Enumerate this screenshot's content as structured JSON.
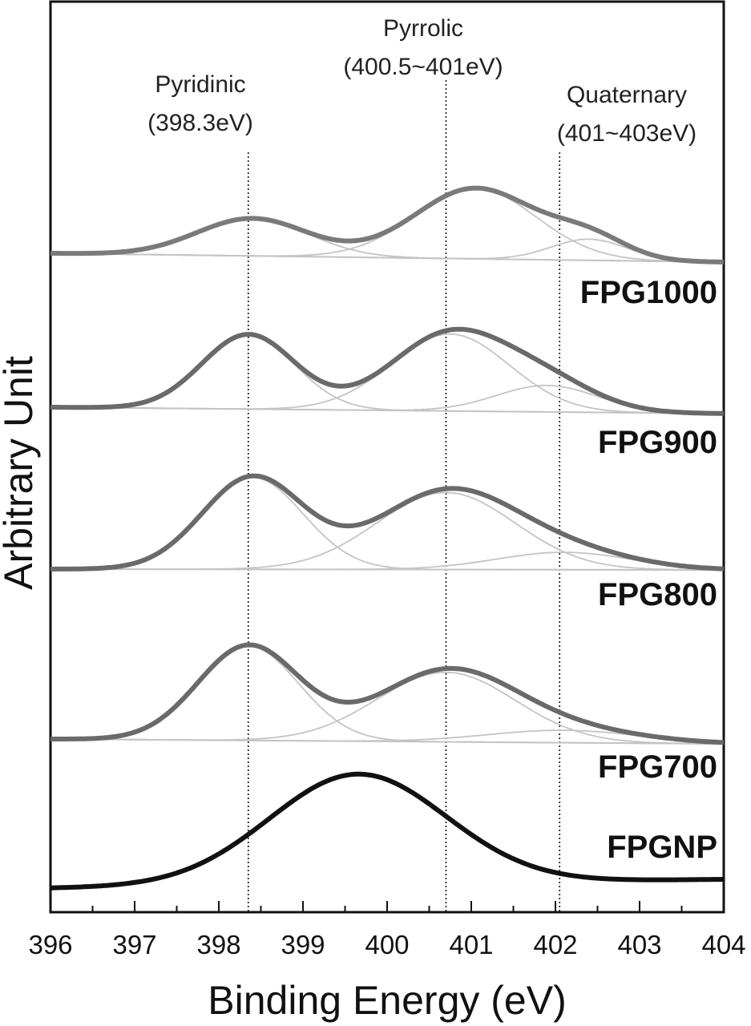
{
  "chart_data": {
    "type": "line",
    "xlabel": "Binding Energy (eV)",
    "ylabel": "Arbitrary Unit",
    "xlim": [
      396,
      404
    ],
    "x_ticks": [
      "396",
      "397",
      "398",
      "399",
      "400",
      "401",
      "402",
      "403",
      "404"
    ],
    "grid": false,
    "annotations": [
      {
        "id": "pyridinic",
        "label": [
          "Pyridinic",
          "(398.3eV)"
        ],
        "x": 398.35
      },
      {
        "id": "pyrrolic",
        "label": [
          "Pyrrolic",
          "(400.5~401eV)"
        ],
        "x": 400.7
      },
      {
        "id": "quaternary",
        "label": [
          "Quaternary",
          "(401~403eV)"
        ],
        "x": 402.05
      }
    ],
    "series": [
      {
        "name": "FPG1000",
        "color": "#7a7a7a",
        "components": [
          {
            "center": 398.4,
            "height": 0.85,
            "width": 0.66
          },
          {
            "center": 401.05,
            "height": 1.6,
            "width": 0.72
          },
          {
            "center": 402.4,
            "height": 0.48,
            "width": 0.45
          }
        ]
      },
      {
        "name": "FPG900",
        "color": "#6a6a6a",
        "components": [
          {
            "center": 398.35,
            "height": 1.55,
            "width": 0.55
          },
          {
            "center": 400.75,
            "height": 1.6,
            "width": 0.7
          },
          {
            "center": 401.9,
            "height": 0.55,
            "width": 0.6
          }
        ]
      },
      {
        "name": "FPG800",
        "color": "#6a6a6a",
        "components": [
          {
            "center": 398.4,
            "height": 1.85,
            "width": 0.6
          },
          {
            "center": 400.7,
            "height": 1.55,
            "width": 0.82
          },
          {
            "center": 402.1,
            "height": 0.35,
            "width": 0.8
          }
        ]
      },
      {
        "name": "FPG700",
        "color": "#6a6a6a",
        "components": [
          {
            "center": 398.35,
            "height": 1.9,
            "width": 0.6
          },
          {
            "center": 400.7,
            "height": 1.4,
            "width": 0.82
          },
          {
            "center": 402.1,
            "height": 0.25,
            "width": 0.9
          }
        ]
      },
      {
        "name": "FPGNP",
        "color": "#111111",
        "components": [
          {
            "center": 399.65,
            "height": 2.45,
            "width": 1.05
          }
        ]
      }
    ]
  }
}
